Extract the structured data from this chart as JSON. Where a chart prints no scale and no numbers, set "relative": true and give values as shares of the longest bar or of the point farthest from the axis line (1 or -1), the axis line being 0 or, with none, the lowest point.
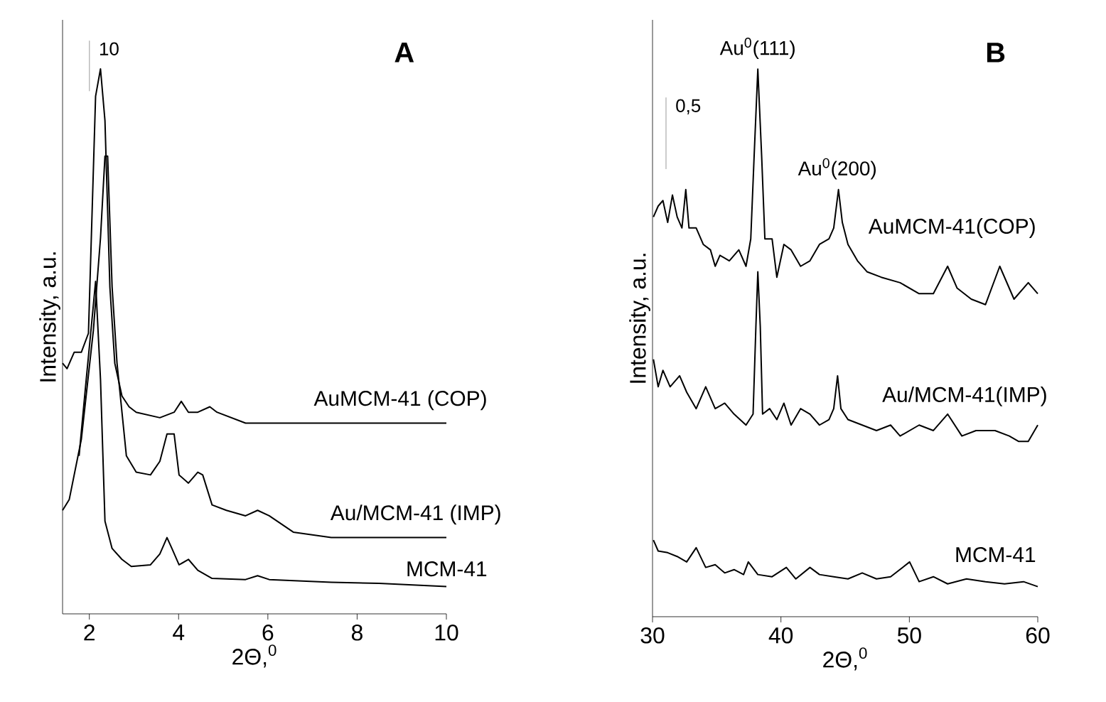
{
  "chart_data": [
    {
      "type": "line",
      "title": "A",
      "xlabel": "2Θ,$^{0}$",
      "ylabel": "Intensity, a.u.",
      "relative": true,
      "xlim": [
        1.4,
        10
      ],
      "xticks": [
        2,
        4,
        6,
        8,
        10
      ],
      "legend": false,
      "marker": "none",
      "line_style": "solid",
      "grid": false,
      "annotations": [
        "10"
      ],
      "series": [
        {
          "name": "AuMCM-41 (COP)",
          "color": "#000000",
          "x": [
            1.4,
            1.5,
            1.66,
            1.82,
            1.98,
            2.14,
            2.25,
            2.35,
            2.46,
            2.57,
            2.73,
            2.89,
            3.05,
            3.58,
            3.9,
            4.06,
            4.22,
            4.43,
            4.7,
            4.86,
            5.18,
            5.5,
            6.35,
            7.42,
            8.49,
            10.0
          ],
          "values": [
            0.46,
            0.45,
            0.48,
            0.48,
            0.515,
            0.95,
            1.0,
            0.905,
            0.6,
            0.46,
            0.4,
            0.38,
            0.37,
            0.36,
            0.37,
            0.39,
            0.37,
            0.37,
            0.38,
            0.37,
            0.36,
            0.35,
            0.35,
            0.35,
            0.35,
            0.35
          ]
        },
        {
          "name": "Au/MCM-41 (IMP)",
          "color": "#000000",
          "x": [
            1.4,
            1.55,
            1.82,
            2.09,
            2.25,
            2.35,
            2.41,
            2.51,
            2.62,
            2.83,
            3.05,
            3.37,
            3.58,
            3.74,
            3.9,
            4.01,
            4.22,
            4.43,
            4.54,
            4.75,
            5.07,
            5.5,
            5.77,
            6.03,
            6.57,
            7.42,
            8.49,
            10.0
          ],
          "values": [
            0.19,
            0.21,
            0.32,
            0.52,
            0.69,
            0.84,
            0.84,
            0.6,
            0.46,
            0.29,
            0.26,
            0.255,
            0.28,
            0.33,
            0.33,
            0.255,
            0.24,
            0.26,
            0.255,
            0.2,
            0.19,
            0.18,
            0.19,
            0.18,
            0.15,
            0.14,
            0.14,
            0.14
          ]
        },
        {
          "name": "MCM-41",
          "color": "#000000",
          "x": [
            1.77,
            1.93,
            2.03,
            2.14,
            2.25,
            2.35,
            2.51,
            2.73,
            2.94,
            3.37,
            3.58,
            3.74,
            3.85,
            4.01,
            4.22,
            4.43,
            4.75,
            5.5,
            5.77,
            6.03,
            7.42,
            8.49,
            10.0
          ],
          "values": [
            0.29,
            0.43,
            0.515,
            0.61,
            0.43,
            0.17,
            0.12,
            0.1,
            0.087,
            0.09,
            0.11,
            0.14,
            0.12,
            0.09,
            0.1,
            0.08,
            0.065,
            0.063,
            0.07,
            0.063,
            0.058,
            0.056,
            0.05
          ]
        }
      ]
    },
    {
      "type": "line",
      "title": "B",
      "xlabel": "2Θ,$^{0}$",
      "ylabel": "Intensity, a.u.",
      "relative": true,
      "xlim": [
        30,
        60
      ],
      "xticks": [
        30,
        40,
        50,
        60
      ],
      "legend": false,
      "marker": "none",
      "line_style": "solid",
      "grid": false,
      "annotations": [
        "0,5",
        {
          "text": "Au$^{0}$(111)",
          "x": 38.2,
          "y": 1.0
        },
        {
          "text": "Au$^{0}$(200)",
          "x": 44.4,
          "y": 0.78
        }
      ],
      "series": [
        {
          "name": "AuMCM-41(COP)",
          "color": "#000000",
          "x": [
            30.07,
            30.44,
            30.81,
            31.18,
            31.55,
            31.92,
            32.29,
            32.59,
            32.84,
            33.4,
            33.95,
            34.51,
            34.88,
            35.25,
            35.98,
            36.72,
            37.28,
            37.65,
            37.91,
            38.2,
            38.5,
            38.75,
            39.31,
            39.68,
            40.23,
            40.79,
            41.53,
            42.26,
            43.0,
            43.74,
            44.11,
            44.48,
            44.78,
            45.22,
            45.96,
            46.7,
            47.81,
            49.28,
            50.76,
            51.87,
            52.98,
            53.72,
            54.82,
            55.93,
            57.04,
            58.15,
            59.26,
            60.0
          ],
          "values": [
            0.73,
            0.75,
            0.76,
            0.72,
            0.77,
            0.73,
            0.71,
            0.78,
            0.71,
            0.71,
            0.68,
            0.67,
            0.64,
            0.66,
            0.65,
            0.67,
            0.64,
            0.69,
            0.84,
            1.0,
            0.84,
            0.69,
            0.69,
            0.62,
            0.68,
            0.67,
            0.64,
            0.65,
            0.68,
            0.69,
            0.71,
            0.78,
            0.72,
            0.68,
            0.65,
            0.63,
            0.62,
            0.61,
            0.59,
            0.59,
            0.64,
            0.6,
            0.58,
            0.57,
            0.64,
            0.58,
            0.61,
            0.59
          ]
        },
        {
          "name": "Au/MCM-41(IMP)",
          "color": "#000000",
          "x": [
            30.07,
            30.44,
            30.81,
            31.37,
            32.11,
            32.66,
            33.4,
            34.14,
            34.88,
            35.62,
            36.35,
            37.28,
            37.83,
            38.05,
            38.2,
            38.39,
            38.57,
            39.12,
            39.68,
            40.23,
            40.79,
            41.53,
            42.26,
            43.0,
            43.74,
            44.11,
            44.41,
            44.67,
            45.22,
            46.33,
            47.44,
            48.54,
            49.28,
            50.76,
            51.87,
            52.98,
            54.09,
            55.19,
            56.67,
            57.78,
            58.52,
            59.26,
            60.0
          ],
          "values": [
            0.47,
            0.42,
            0.45,
            0.42,
            0.44,
            0.41,
            0.38,
            0.42,
            0.38,
            0.39,
            0.37,
            0.35,
            0.37,
            0.53,
            0.63,
            0.53,
            0.37,
            0.38,
            0.36,
            0.39,
            0.35,
            0.38,
            0.37,
            0.35,
            0.36,
            0.38,
            0.44,
            0.38,
            0.36,
            0.35,
            0.34,
            0.35,
            0.33,
            0.35,
            0.34,
            0.37,
            0.33,
            0.34,
            0.34,
            0.33,
            0.32,
            0.32,
            0.35
          ]
        },
        {
          "name": "MCM-41",
          "color": "#000000",
          "x": [
            30.07,
            30.44,
            31.18,
            31.92,
            32.66,
            33.4,
            34.14,
            34.88,
            35.62,
            36.35,
            37.09,
            37.46,
            38.2,
            39.31,
            40.42,
            41.16,
            42.26,
            43.0,
            44.11,
            45.22,
            46.33,
            47.44,
            48.54,
            50.02,
            50.76,
            51.87,
            52.98,
            54.45,
            55.93,
            57.41,
            58.89,
            60.0
          ],
          "values": [
            0.14,
            0.12,
            0.117,
            0.11,
            0.1,
            0.126,
            0.09,
            0.095,
            0.08,
            0.086,
            0.077,
            0.1,
            0.077,
            0.073,
            0.09,
            0.069,
            0.09,
            0.077,
            0.073,
            0.069,
            0.08,
            0.069,
            0.073,
            0.1,
            0.064,
            0.073,
            0.06,
            0.069,
            0.064,
            0.06,
            0.064,
            0.055
          ]
        }
      ]
    }
  ]
}
